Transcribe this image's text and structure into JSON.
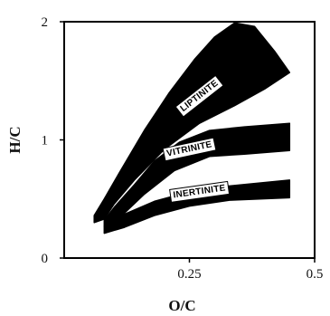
{
  "chart_data": {
    "type": "area",
    "xlabel": "O/C",
    "ylabel": "H/C",
    "xlim": [
      0,
      0.5
    ],
    "ylim": [
      0,
      2
    ],
    "x_ticks": [
      {
        "value": 0.25,
        "label": "0.25"
      },
      {
        "value": 0.5,
        "label": "0.5"
      }
    ],
    "y_ticks": [
      {
        "value": 0,
        "label": "0"
      },
      {
        "value": 1,
        "label": "1"
      },
      {
        "value": 2,
        "label": "2"
      }
    ],
    "grid": false,
    "series": [
      {
        "name": "LIPTINITE",
        "color": "#000000",
        "label_angle": -38,
        "label_at": [
          0.27,
          1.37
        ],
        "polygon": [
          [
            0.06,
            0.36
          ],
          [
            0.08,
            0.5
          ],
          [
            0.11,
            0.72
          ],
          [
            0.16,
            1.08
          ],
          [
            0.21,
            1.4
          ],
          [
            0.26,
            1.68
          ],
          [
            0.3,
            1.87
          ],
          [
            0.34,
            1.99
          ],
          [
            0.38,
            1.96
          ],
          [
            0.42,
            1.75
          ],
          [
            0.45,
            1.57
          ],
          [
            0.4,
            1.43
          ],
          [
            0.34,
            1.29
          ],
          [
            0.27,
            1.14
          ],
          [
            0.2,
            0.92
          ],
          [
            0.14,
            0.66
          ],
          [
            0.1,
            0.46
          ],
          [
            0.08,
            0.33
          ],
          [
            0.06,
            0.3
          ]
        ]
      },
      {
        "name": "VITRINITE",
        "color": "#000000",
        "label_angle": -12,
        "label_at": [
          0.25,
          0.92
        ],
        "polygon": [
          [
            0.08,
            0.32
          ],
          [
            0.1,
            0.43
          ],
          [
            0.14,
            0.62
          ],
          [
            0.18,
            0.82
          ],
          [
            0.23,
            0.98
          ],
          [
            0.29,
            1.08
          ],
          [
            0.36,
            1.11
          ],
          [
            0.45,
            1.14
          ],
          [
            0.45,
            0.91
          ],
          [
            0.36,
            0.88
          ],
          [
            0.29,
            0.86
          ],
          [
            0.22,
            0.74
          ],
          [
            0.16,
            0.54
          ],
          [
            0.12,
            0.38
          ],
          [
            0.09,
            0.28
          ],
          [
            0.08,
            0.27
          ]
        ]
      },
      {
        "name": "INERTINITE",
        "color": "#000000",
        "label_angle": -8,
        "label_at": [
          0.27,
          0.56
        ],
        "polygon": [
          [
            0.08,
            0.21
          ],
          [
            0.08,
            0.27
          ],
          [
            0.12,
            0.37
          ],
          [
            0.18,
            0.48
          ],
          [
            0.25,
            0.56
          ],
          [
            0.33,
            0.61
          ],
          [
            0.45,
            0.66
          ],
          [
            0.45,
            0.51
          ],
          [
            0.33,
            0.49
          ],
          [
            0.25,
            0.44
          ],
          [
            0.18,
            0.36
          ],
          [
            0.12,
            0.26
          ],
          [
            0.08,
            0.21
          ]
        ]
      }
    ]
  }
}
